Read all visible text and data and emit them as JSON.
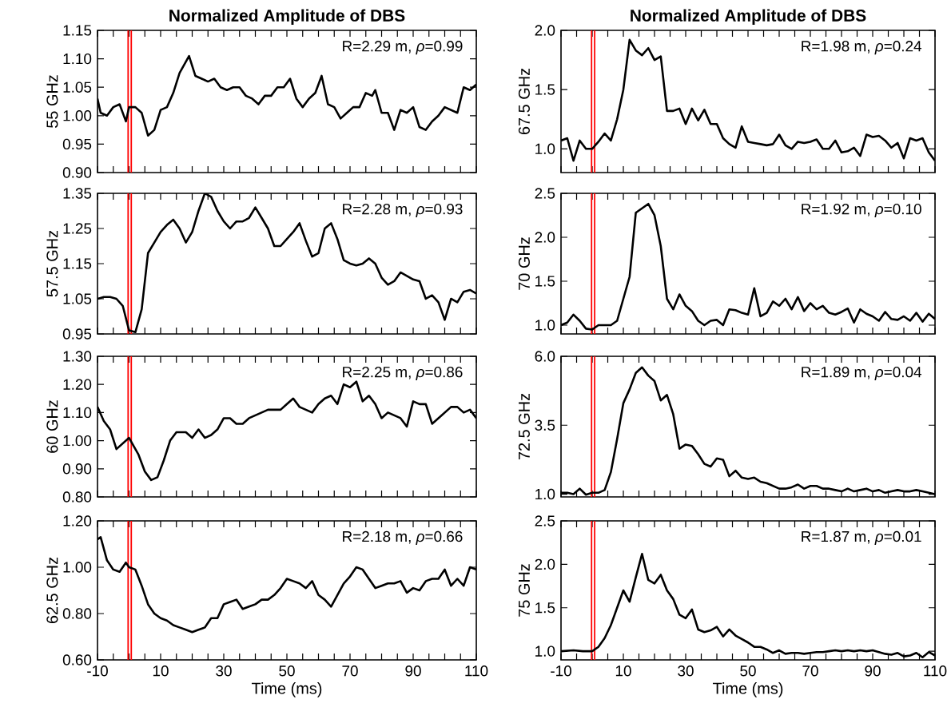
{
  "chart_data": [
    {
      "type": "line",
      "title": "Normalized Amplitude of DBS",
      "ylabel": "55 GHz",
      "xlim": [
        -10,
        110
      ],
      "ylim": [
        0.9,
        1.15
      ],
      "xticks": [
        -10,
        {
          "value": -5,
          "label": null
        },
        {
          "value": 0,
          "label": null
        },
        {
          "value": 5,
          "label": null
        },
        10,
        {
          "value": 15,
          "label": null
        },
        {
          "value": 20,
          "label": null
        },
        {
          "value": 25,
          "label": null
        },
        30,
        {
          "value": 35,
          "label": null
        },
        {
          "value": 40,
          "label": null
        },
        {
          "value": 45,
          "label": null
        },
        50,
        {
          "value": 55,
          "label": null
        },
        {
          "value": 60,
          "label": null
        },
        {
          "value": 65,
          "label": null
        },
        70,
        {
          "value": 75,
          "label": null
        },
        {
          "value": 80,
          "label": null
        },
        {
          "value": 85,
          "label": null
        },
        90,
        {
          "value": 95,
          "label": null
        },
        {
          "value": 100,
          "label": null
        },
        {
          "value": 105,
          "label": null
        },
        110
      ],
      "yticks": [
        {
          "value": 0.9,
          "label": "0.90"
        },
        {
          "value": 0.95,
          "label": "0.95"
        },
        {
          "value": 1.0,
          "label": "1.00"
        },
        {
          "value": 1.05,
          "label": "1.05"
        },
        {
          "value": 1.1,
          "label": "1.10"
        },
        {
          "value": 1.15,
          "label": "1.15"
        }
      ],
      "tick_labels": "y",
      "annotations": [
        "R=2.29 m, *ρ*=0.99"
      ],
      "ref_lines": [
        {
          "axis": "x",
          "value": -0.3,
          "color": "#ff0000"
        },
        {
          "axis": "x",
          "value": 0.7,
          "color": "#ff0000"
        }
      ],
      "x": [
        -10,
        -9,
        -7,
        -5,
        -3,
        -1,
        0,
        2,
        4,
        6,
        8,
        10,
        12,
        14,
        16,
        19,
        21,
        23,
        25,
        27,
        29,
        31,
        33,
        35,
        37,
        39,
        41,
        43,
        45,
        47,
        49,
        51,
        53,
        55,
        57,
        59,
        61,
        63,
        65,
        67,
        69,
        71,
        73,
        75,
        77,
        78,
        80,
        82,
        84,
        86,
        88,
        90,
        92,
        94,
        96,
        98,
        100,
        102,
        104,
        106,
        108,
        110
      ],
      "series": [
        {
          "color": "#000000",
          "values": [
            1.03,
            1.005,
            1.0,
            1.015,
            1.02,
            0.99,
            1.015,
            1.015,
            1.005,
            0.965,
            0.975,
            1.01,
            1.015,
            1.04,
            1.075,
            1.105,
            1.07,
            1.065,
            1.06,
            1.065,
            1.05,
            1.045,
            1.05,
            1.05,
            1.035,
            1.03,
            1.02,
            1.035,
            1.035,
            1.05,
            1.05,
            1.065,
            1.03,
            1.015,
            1.03,
            1.04,
            1.07,
            1.02,
            1.015,
            0.995,
            1.005,
            1.015,
            1.015,
            1.04,
            1.035,
            1.045,
            1.005,
            1.005,
            0.975,
            1.01,
            1.005,
            1.015,
            0.98,
            0.975,
            0.99,
            1.0,
            1.015,
            1.01,
            1.005,
            1.05,
            1.045,
            1.055
          ]
        }
      ]
    },
    {
      "type": "line",
      "title": "Normalized Amplitude of DBS",
      "ylabel": "67.5 GHz",
      "xlim": [
        -10,
        110
      ],
      "ylim": [
        0.8,
        2.0
      ],
      "xticks": [
        -10,
        {
          "value": -5,
          "label": null
        },
        {
          "value": 0,
          "label": null
        },
        {
          "value": 5,
          "label": null
        },
        10,
        {
          "value": 15,
          "label": null
        },
        {
          "value": 20,
          "label": null
        },
        {
          "value": 25,
          "label": null
        },
        30,
        {
          "value": 35,
          "label": null
        },
        {
          "value": 40,
          "label": null
        },
        {
          "value": 45,
          "label": null
        },
        50,
        {
          "value": 55,
          "label": null
        },
        {
          "value": 60,
          "label": null
        },
        {
          "value": 65,
          "label": null
        },
        70,
        {
          "value": 75,
          "label": null
        },
        {
          "value": 80,
          "label": null
        },
        {
          "value": 85,
          "label": null
        },
        90,
        {
          "value": 95,
          "label": null
        },
        {
          "value": 100,
          "label": null
        },
        {
          "value": 105,
          "label": null
        },
        110
      ],
      "yticks": [
        {
          "value": 1.0,
          "label": "1.0"
        },
        {
          "value": 1.5,
          "label": "1.5"
        },
        {
          "value": 2.0,
          "label": "2.0"
        }
      ],
      "tick_labels": "y",
      "annotations": [
        "R=1.98 m, *ρ*=0.24"
      ],
      "ref_lines": [
        {
          "axis": "x",
          "value": -0.2,
          "color": "#ff0000"
        },
        {
          "axis": "x",
          "value": 0.8,
          "color": "#ff0000"
        }
      ],
      "x": [
        -10,
        -8,
        -6,
        -4,
        -2,
        0,
        2,
        4,
        6,
        8,
        10,
        12,
        14,
        16,
        18,
        20,
        22,
        24,
        26,
        28,
        30,
        32,
        34,
        36,
        38,
        40,
        42,
        44,
        46,
        48,
        50,
        52,
        54,
        56,
        58,
        60,
        62,
        64,
        66,
        68,
        70,
        72,
        74,
        76,
        78,
        80,
        82,
        84,
        86,
        88,
        90,
        92,
        94,
        96,
        98,
        100,
        102,
        104,
        106,
        108,
        110
      ],
      "series": [
        {
          "color": "#000000",
          "values": [
            1.07,
            1.09,
            0.9,
            1.07,
            1.0,
            1.0,
            1.06,
            1.13,
            1.07,
            1.25,
            1.5,
            1.92,
            1.83,
            1.79,
            1.85,
            1.75,
            1.78,
            1.32,
            1.32,
            1.34,
            1.21,
            1.34,
            1.24,
            1.33,
            1.21,
            1.21,
            1.09,
            1.04,
            1.01,
            1.19,
            1.06,
            1.05,
            1.04,
            1.03,
            1.04,
            1.12,
            1.03,
            1.0,
            1.06,
            1.05,
            1.06,
            1.08,
            1.0,
            1.0,
            1.07,
            0.97,
            0.98,
            1.01,
            0.94,
            1.12,
            1.1,
            1.11,
            1.07,
            1.01,
            1.05,
            0.92,
            1.09,
            1.07,
            1.09,
            0.97,
            0.9
          ]
        }
      ]
    },
    {
      "type": "line",
      "ylabel": "57.5 GHz",
      "xlim": [
        -10,
        110
      ],
      "ylim": [
        0.95,
        1.35
      ],
      "xticks": [
        -10,
        {
          "value": -5,
          "label": null
        },
        {
          "value": 0,
          "label": null
        },
        {
          "value": 5,
          "label": null
        },
        10,
        {
          "value": 15,
          "label": null
        },
        {
          "value": 20,
          "label": null
        },
        {
          "value": 25,
          "label": null
        },
        30,
        {
          "value": 35,
          "label": null
        },
        {
          "value": 40,
          "label": null
        },
        {
          "value": 45,
          "label": null
        },
        50,
        {
          "value": 55,
          "label": null
        },
        {
          "value": 60,
          "label": null
        },
        {
          "value": 65,
          "label": null
        },
        70,
        {
          "value": 75,
          "label": null
        },
        {
          "value": 80,
          "label": null
        },
        {
          "value": 85,
          "label": null
        },
        90,
        {
          "value": 95,
          "label": null
        },
        {
          "value": 100,
          "label": null
        },
        {
          "value": 105,
          "label": null
        },
        110
      ],
      "yticks": [
        0.95,
        1.05,
        1.15,
        1.25,
        1.35
      ],
      "tick_labels": "y",
      "annotations": [
        "R=2.28 m, *ρ*=0.93"
      ],
      "ref_lines": [
        {
          "axis": "x",
          "value": -0.3,
          "color": "#ff0000"
        },
        {
          "axis": "x",
          "value": 0.7,
          "color": "#ff0000"
        }
      ],
      "x": [
        -10,
        -8,
        -6,
        -4,
        -2,
        0,
        2,
        4,
        6,
        8,
        10,
        12,
        14,
        16,
        18,
        20,
        22,
        24,
        26,
        28,
        30,
        32,
        34,
        36,
        38,
        40,
        42,
        44,
        46,
        48,
        50,
        52,
        54,
        56,
        58,
        60,
        62,
        64,
        66,
        68,
        70,
        72,
        74,
        76,
        78,
        80,
        82,
        84,
        86,
        88,
        90,
        92,
        94,
        96,
        98,
        100,
        102,
        104,
        106,
        108,
        110
      ],
      "series": [
        {
          "color": "#000000",
          "values": [
            1.05,
            1.055,
            1.055,
            1.05,
            1.03,
            0.96,
            0.955,
            1.02,
            1.18,
            1.21,
            1.24,
            1.26,
            1.275,
            1.25,
            1.21,
            1.24,
            1.3,
            1.35,
            1.34,
            1.3,
            1.27,
            1.25,
            1.27,
            1.27,
            1.28,
            1.31,
            1.28,
            1.25,
            1.2,
            1.2,
            1.22,
            1.24,
            1.265,
            1.215,
            1.17,
            1.18,
            1.25,
            1.265,
            1.22,
            1.16,
            1.15,
            1.145,
            1.15,
            1.165,
            1.15,
            1.11,
            1.09,
            1.1,
            1.125,
            1.115,
            1.105,
            1.1,
            1.05,
            1.06,
            1.04,
            0.99,
            1.05,
            1.04,
            1.07,
            1.075,
            1.065
          ]
        }
      ]
    },
    {
      "type": "line",
      "ylabel": "70 GHz",
      "xlim": [
        -10,
        110
      ],
      "ylim": [
        0.9,
        2.5
      ],
      "xticks": [
        -10,
        {
          "value": -5,
          "label": null
        },
        {
          "value": 0,
          "label": null
        },
        {
          "value": 5,
          "label": null
        },
        10,
        {
          "value": 15,
          "label": null
        },
        {
          "value": 20,
          "label": null
        },
        {
          "value": 25,
          "label": null
        },
        30,
        {
          "value": 35,
          "label": null
        },
        {
          "value": 40,
          "label": null
        },
        {
          "value": 45,
          "label": null
        },
        50,
        {
          "value": 55,
          "label": null
        },
        {
          "value": 60,
          "label": null
        },
        {
          "value": 65,
          "label": null
        },
        70,
        {
          "value": 75,
          "label": null
        },
        {
          "value": 80,
          "label": null
        },
        {
          "value": 85,
          "label": null
        },
        90,
        {
          "value": 95,
          "label": null
        },
        {
          "value": 100,
          "label": null
        },
        {
          "value": 105,
          "label": null
        },
        110
      ],
      "yticks": [
        {
          "value": 1.0,
          "label": "1.0"
        },
        {
          "value": 1.5,
          "label": "1.5"
        },
        {
          "value": 2.0,
          "label": "2.0"
        },
        {
          "value": 2.5,
          "label": "2.5"
        }
      ],
      "tick_labels": "y",
      "annotations": [
        "R=1.92 m, *ρ*=0.10"
      ],
      "ref_lines": [
        {
          "axis": "x",
          "value": -0.2,
          "color": "#ff0000"
        },
        {
          "axis": "x",
          "value": 0.8,
          "color": "#ff0000"
        }
      ],
      "x": [
        -10,
        -8,
        -6,
        -4,
        -2,
        0,
        2,
        4,
        6,
        8,
        10,
        12,
        14,
        16,
        18,
        20,
        22,
        24,
        26,
        28,
        30,
        32,
        34,
        36,
        38,
        40,
        42,
        44,
        46,
        48,
        50,
        52,
        54,
        56,
        58,
        60,
        62,
        64,
        66,
        68,
        70,
        72,
        74,
        76,
        78,
        80,
        82,
        84,
        86,
        88,
        90,
        92,
        94,
        96,
        98,
        100,
        102,
        104,
        106,
        108,
        110
      ],
      "series": [
        {
          "color": "#000000",
          "values": [
            1.0,
            1.03,
            1.12,
            1.05,
            0.96,
            0.95,
            1.0,
            1.0,
            1.0,
            1.05,
            1.3,
            1.55,
            2.28,
            2.33,
            2.38,
            2.25,
            1.9,
            1.3,
            1.18,
            1.35,
            1.22,
            1.16,
            1.05,
            1.0,
            1.05,
            1.06,
            1.0,
            1.18,
            1.17,
            1.14,
            1.12,
            1.42,
            1.1,
            1.14,
            1.27,
            1.22,
            1.3,
            1.18,
            1.32,
            1.16,
            1.25,
            1.18,
            1.22,
            1.14,
            1.12,
            1.15,
            1.19,
            1.03,
            1.18,
            1.13,
            1.1,
            1.05,
            1.15,
            1.07,
            1.06,
            1.1,
            1.05,
            1.14,
            1.04,
            1.13,
            1.07
          ]
        }
      ]
    },
    {
      "type": "line",
      "ylabel": "60 GHz",
      "xlim": [
        -10,
        110
      ],
      "ylim": [
        0.8,
        1.3
      ],
      "xticks": [
        -10,
        {
          "value": -5,
          "label": null
        },
        {
          "value": 0,
          "label": null
        },
        {
          "value": 5,
          "label": null
        },
        10,
        {
          "value": 15,
          "label": null
        },
        {
          "value": 20,
          "label": null
        },
        {
          "value": 25,
          "label": null
        },
        30,
        {
          "value": 35,
          "label": null
        },
        {
          "value": 40,
          "label": null
        },
        {
          "value": 45,
          "label": null
        },
        50,
        {
          "value": 55,
          "label": null
        },
        {
          "value": 60,
          "label": null
        },
        {
          "value": 65,
          "label": null
        },
        70,
        {
          "value": 75,
          "label": null
        },
        {
          "value": 80,
          "label": null
        },
        {
          "value": 85,
          "label": null
        },
        90,
        {
          "value": 95,
          "label": null
        },
        {
          "value": 100,
          "label": null
        },
        {
          "value": 105,
          "label": null
        },
        110
      ],
      "yticks": [
        {
          "value": 0.8,
          "label": "0.80"
        },
        {
          "value": 0.9,
          "label": "0.90"
        },
        {
          "value": 1.0,
          "label": "1.00"
        },
        {
          "value": 1.1,
          "label": "1.10"
        },
        {
          "value": 1.2,
          "label": "1.20"
        },
        {
          "value": 1.3,
          "label": "1.30"
        }
      ],
      "tick_labels": "y",
      "annotations": [
        "R=2.25 m, *ρ*=0.86"
      ],
      "ref_lines": [
        {
          "axis": "x",
          "value": -0.3,
          "color": "#ff0000"
        },
        {
          "axis": "x",
          "value": 0.7,
          "color": "#ff0000"
        }
      ],
      "x": [
        -10,
        -8,
        -6,
        -4,
        -2,
        0,
        1,
        3,
        5,
        7,
        9,
        11,
        13,
        15,
        18,
        20,
        22,
        24,
        26,
        28,
        30,
        32,
        34,
        36,
        38,
        40,
        42,
        44,
        46,
        48,
        50,
        52,
        54,
        56,
        58,
        60,
        62,
        64,
        66,
        68,
        70,
        72,
        74,
        76,
        78,
        80,
        82,
        84,
        86,
        88,
        90,
        92,
        94,
        96,
        98,
        100,
        102,
        104,
        106,
        108,
        110
      ],
      "series": [
        {
          "color": "#000000",
          "values": [
            1.12,
            1.07,
            1.04,
            0.97,
            0.99,
            1.01,
            0.99,
            0.95,
            0.89,
            0.86,
            0.87,
            0.93,
            1.0,
            1.03,
            1.03,
            1.01,
            1.04,
            1.01,
            1.02,
            1.04,
            1.08,
            1.08,
            1.06,
            1.06,
            1.08,
            1.09,
            1.1,
            1.11,
            1.11,
            1.11,
            1.13,
            1.15,
            1.12,
            1.11,
            1.1,
            1.13,
            1.15,
            1.16,
            1.13,
            1.2,
            1.19,
            1.21,
            1.14,
            1.16,
            1.13,
            1.08,
            1.1,
            1.09,
            1.08,
            1.05,
            1.14,
            1.13,
            1.13,
            1.06,
            1.08,
            1.1,
            1.12,
            1.12,
            1.1,
            1.11,
            1.08
          ]
        }
      ]
    },
    {
      "type": "line",
      "ylabel": "72.5 GHz",
      "xlim": [
        -10,
        110
      ],
      "ylim": [
        0.9,
        6.0
      ],
      "xticks": [
        -10,
        {
          "value": -5,
          "label": null
        },
        {
          "value": 0,
          "label": null
        },
        {
          "value": 5,
          "label": null
        },
        10,
        {
          "value": 15,
          "label": null
        },
        {
          "value": 20,
          "label": null
        },
        {
          "value": 25,
          "label": null
        },
        30,
        {
          "value": 35,
          "label": null
        },
        {
          "value": 40,
          "label": null
        },
        {
          "value": 45,
          "label": null
        },
        50,
        {
          "value": 55,
          "label": null
        },
        {
          "value": 60,
          "label": null
        },
        {
          "value": 65,
          "label": null
        },
        70,
        {
          "value": 75,
          "label": null
        },
        {
          "value": 80,
          "label": null
        },
        {
          "value": 85,
          "label": null
        },
        90,
        {
          "value": 95,
          "label": null
        },
        {
          "value": 100,
          "label": null
        },
        {
          "value": 105,
          "label": null
        },
        110
      ],
      "yticks": [
        {
          "value": 1.0,
          "label": "1.0"
        },
        {
          "value": 3.5,
          "label": "3.5"
        },
        {
          "value": 6.0,
          "label": "6.0"
        }
      ],
      "tick_labels": "y",
      "annotations": [
        "R=1.89 m, *ρ*=0.04"
      ],
      "ref_lines": [
        {
          "axis": "x",
          "value": -0.2,
          "color": "#ff0000"
        },
        {
          "axis": "x",
          "value": 0.8,
          "color": "#ff0000"
        }
      ],
      "x": [
        -10,
        -8,
        -6,
        -4,
        -2,
        0,
        2,
        4,
        6,
        8,
        10,
        12,
        14,
        16,
        18,
        20,
        22,
        24,
        26,
        28,
        30,
        32,
        34,
        36,
        38,
        40,
        42,
        44,
        46,
        48,
        50,
        52,
        54,
        56,
        58,
        60,
        62,
        64,
        66,
        68,
        70,
        72,
        74,
        76,
        78,
        80,
        82,
        84,
        86,
        88,
        90,
        92,
        94,
        96,
        98,
        100,
        102,
        104,
        106,
        108,
        110
      ],
      "series": [
        {
          "color": "#000000",
          "values": [
            1.05,
            1.05,
            1.0,
            1.2,
            0.98,
            1.05,
            1.05,
            1.15,
            1.8,
            3.0,
            4.3,
            4.8,
            5.4,
            5.6,
            5.3,
            5.1,
            4.4,
            4.6,
            3.9,
            2.65,
            2.8,
            2.75,
            2.45,
            2.1,
            2.0,
            2.3,
            2.25,
            1.65,
            1.85,
            1.6,
            1.55,
            1.6,
            1.45,
            1.4,
            1.3,
            1.2,
            1.2,
            1.25,
            1.35,
            1.2,
            1.3,
            1.3,
            1.2,
            1.2,
            1.15,
            1.1,
            1.2,
            1.1,
            1.15,
            1.2,
            1.1,
            1.15,
            1.05,
            1.1,
            1.15,
            1.1,
            1.1,
            1.15,
            1.1,
            1.05,
            1.0
          ]
        }
      ]
    },
    {
      "type": "line",
      "ylabel": "62.5 GHz",
      "xlabel": "Time (ms)",
      "xlim": [
        -10,
        110
      ],
      "ylim": [
        0.6,
        1.2
      ],
      "xticks": [
        -10,
        {
          "value": -5,
          "label": null
        },
        {
          "value": 0,
          "label": null
        },
        {
          "value": 5,
          "label": null
        },
        10,
        {
          "value": 15,
          "label": null
        },
        {
          "value": 20,
          "label": null
        },
        {
          "value": 25,
          "label": null
        },
        30,
        {
          "value": 35,
          "label": null
        },
        {
          "value": 40,
          "label": null
        },
        {
          "value": 45,
          "label": null
        },
        50,
        {
          "value": 55,
          "label": null
        },
        {
          "value": 60,
          "label": null
        },
        {
          "value": 65,
          "label": null
        },
        70,
        {
          "value": 75,
          "label": null
        },
        {
          "value": 80,
          "label": null
        },
        {
          "value": 85,
          "label": null
        },
        90,
        {
          "value": 95,
          "label": null
        },
        {
          "value": 100,
          "label": null
        },
        {
          "value": 105,
          "label": null
        },
        110
      ],
      "yticks": [
        {
          "value": 0.6,
          "label": "0.60"
        },
        {
          "value": 0.8,
          "label": "0.80"
        },
        {
          "value": 1.0,
          "label": "1.00"
        },
        {
          "value": 1.2,
          "label": "1.20"
        }
      ],
      "annotations": [
        "R=2.18 m, *ρ*=0.66"
      ],
      "ref_lines": [
        {
          "axis": "x",
          "value": -0.3,
          "color": "#ff0000"
        },
        {
          "axis": "x",
          "value": 0.7,
          "color": "#ff0000"
        }
      ],
      "x": [
        -10,
        -9,
        -7,
        -5,
        -3,
        -1,
        0,
        2,
        4,
        6,
        8,
        10,
        12,
        14,
        16,
        18,
        20,
        22,
        24,
        26,
        28,
        30,
        32,
        34,
        36,
        38,
        40,
        42,
        44,
        46,
        48,
        50,
        52,
        54,
        56,
        58,
        60,
        62,
        64,
        66,
        68,
        70,
        72,
        74,
        76,
        78,
        80,
        82,
        84,
        86,
        88,
        90,
        92,
        94,
        96,
        98,
        100,
        102,
        104,
        106,
        108,
        110
      ],
      "series": [
        {
          "color": "#000000",
          "values": [
            1.12,
            1.13,
            1.03,
            0.99,
            0.98,
            1.02,
            1.0,
            0.99,
            0.92,
            0.84,
            0.8,
            0.78,
            0.77,
            0.75,
            0.74,
            0.73,
            0.72,
            0.73,
            0.74,
            0.78,
            0.78,
            0.84,
            0.85,
            0.86,
            0.82,
            0.83,
            0.84,
            0.86,
            0.86,
            0.88,
            0.91,
            0.95,
            0.94,
            0.93,
            0.91,
            0.94,
            0.88,
            0.86,
            0.83,
            0.88,
            0.93,
            0.96,
            1.0,
            0.99,
            0.95,
            0.91,
            0.92,
            0.93,
            0.93,
            0.94,
            0.89,
            0.91,
            0.9,
            0.94,
            0.95,
            0.95,
            0.99,
            0.92,
            0.95,
            0.92,
            1.0,
            0.99
          ]
        }
      ]
    },
    {
      "type": "line",
      "ylabel": "75 GHz",
      "xlabel": "Time (ms)",
      "xlim": [
        -10,
        110
      ],
      "ylim": [
        0.9,
        2.5
      ],
      "xticks": [
        -10,
        {
          "value": -5,
          "label": null
        },
        {
          "value": 0,
          "label": null
        },
        {
          "value": 5,
          "label": null
        },
        10,
        {
          "value": 15,
          "label": null
        },
        {
          "value": 20,
          "label": null
        },
        {
          "value": 25,
          "label": null
        },
        30,
        {
          "value": 35,
          "label": null
        },
        {
          "value": 40,
          "label": null
        },
        {
          "value": 45,
          "label": null
        },
        50,
        {
          "value": 55,
          "label": null
        },
        {
          "value": 60,
          "label": null
        },
        {
          "value": 65,
          "label": null
        },
        70,
        {
          "value": 75,
          "label": null
        },
        {
          "value": 80,
          "label": null
        },
        {
          "value": 85,
          "label": null
        },
        90,
        {
          "value": 95,
          "label": null
        },
        {
          "value": 100,
          "label": null
        },
        {
          "value": 105,
          "label": null
        },
        110
      ],
      "yticks": [
        {
          "value": 1.0,
          "label": "1.0"
        },
        {
          "value": 1.5,
          "label": "1.5"
        },
        {
          "value": 2.0,
          "label": "2.0"
        },
        {
          "value": 2.5,
          "label": "2.5"
        }
      ],
      "annotations": [
        "R=1.87 m, *ρ*=0.01"
      ],
      "ref_lines": [
        {
          "axis": "x",
          "value": -0.2,
          "color": "#ff0000"
        },
        {
          "axis": "x",
          "value": 0.8,
          "color": "#ff0000"
        }
      ],
      "x": [
        -10,
        -6,
        -3,
        0,
        2,
        4,
        6,
        8,
        10,
        12,
        14,
        16,
        18,
        20,
        22,
        24,
        26,
        28,
        30,
        32,
        34,
        36,
        38,
        40,
        42,
        44,
        46,
        48,
        50,
        52,
        54,
        56,
        58,
        60,
        62,
        64,
        66,
        68,
        70,
        72,
        74,
        76,
        78,
        80,
        82,
        84,
        86,
        88,
        90,
        92,
        94,
        96,
        98,
        100,
        102,
        104,
        106,
        108,
        110
      ],
      "series": [
        {
          "color": "#000000",
          "values": [
            1.0,
            1.01,
            1.0,
            1.0,
            1.05,
            1.15,
            1.3,
            1.5,
            1.7,
            1.57,
            1.85,
            2.12,
            1.82,
            1.78,
            1.88,
            1.7,
            1.6,
            1.42,
            1.38,
            1.48,
            1.25,
            1.22,
            1.24,
            1.28,
            1.17,
            1.25,
            1.18,
            1.14,
            1.1,
            1.05,
            1.05,
            1.02,
            0.98,
            1.01,
            0.97,
            0.98,
            0.98,
            0.97,
            0.98,
            0.99,
            0.99,
            1.0,
            1.01,
            1.0,
            1.01,
            1.0,
            1.01,
            1.0,
            1.01,
            0.99,
            0.97,
            0.96,
            0.98,
            0.94,
            0.95,
            0.98,
            0.93,
            0.99,
            0.95
          ]
        }
      ]
    }
  ]
}
